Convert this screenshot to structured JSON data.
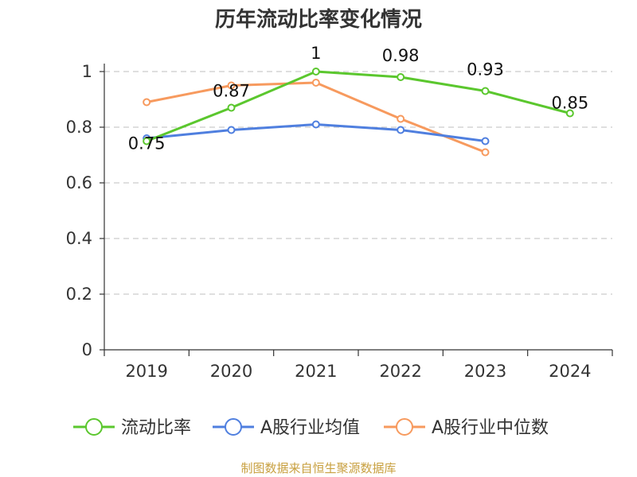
{
  "chart_data": {
    "type": "line",
    "title": "历年流动比率变化情况",
    "categories": [
      "2019",
      "2020",
      "2021",
      "2022",
      "2023",
      "2024"
    ],
    "ylim": [
      0,
      1
    ],
    "yticks": [
      "0",
      "0.2",
      "0.4",
      "0.6",
      "0.8",
      "1"
    ],
    "grid": true,
    "legend_position": "bottom",
    "series": [
      {
        "name": "流动比率",
        "color": "#5bc72e",
        "values": [
          0.75,
          0.87,
          1.0,
          0.98,
          0.93,
          0.85
        ],
        "labels": [
          "0.75",
          "0.87",
          "1",
          "0.98",
          "0.93",
          "0.85"
        ]
      },
      {
        "name": "A股行业均值",
        "color": "#4f7fdf",
        "values": [
          0.76,
          0.79,
          0.81,
          0.79,
          0.75,
          null
        ]
      },
      {
        "name": "A股行业中位数",
        "color": "#f79a5e",
        "values": [
          0.89,
          0.95,
          0.96,
          0.83,
          0.71,
          null
        ]
      }
    ]
  },
  "footer": {
    "source": "制图数据来自恒生聚源数据库"
  }
}
